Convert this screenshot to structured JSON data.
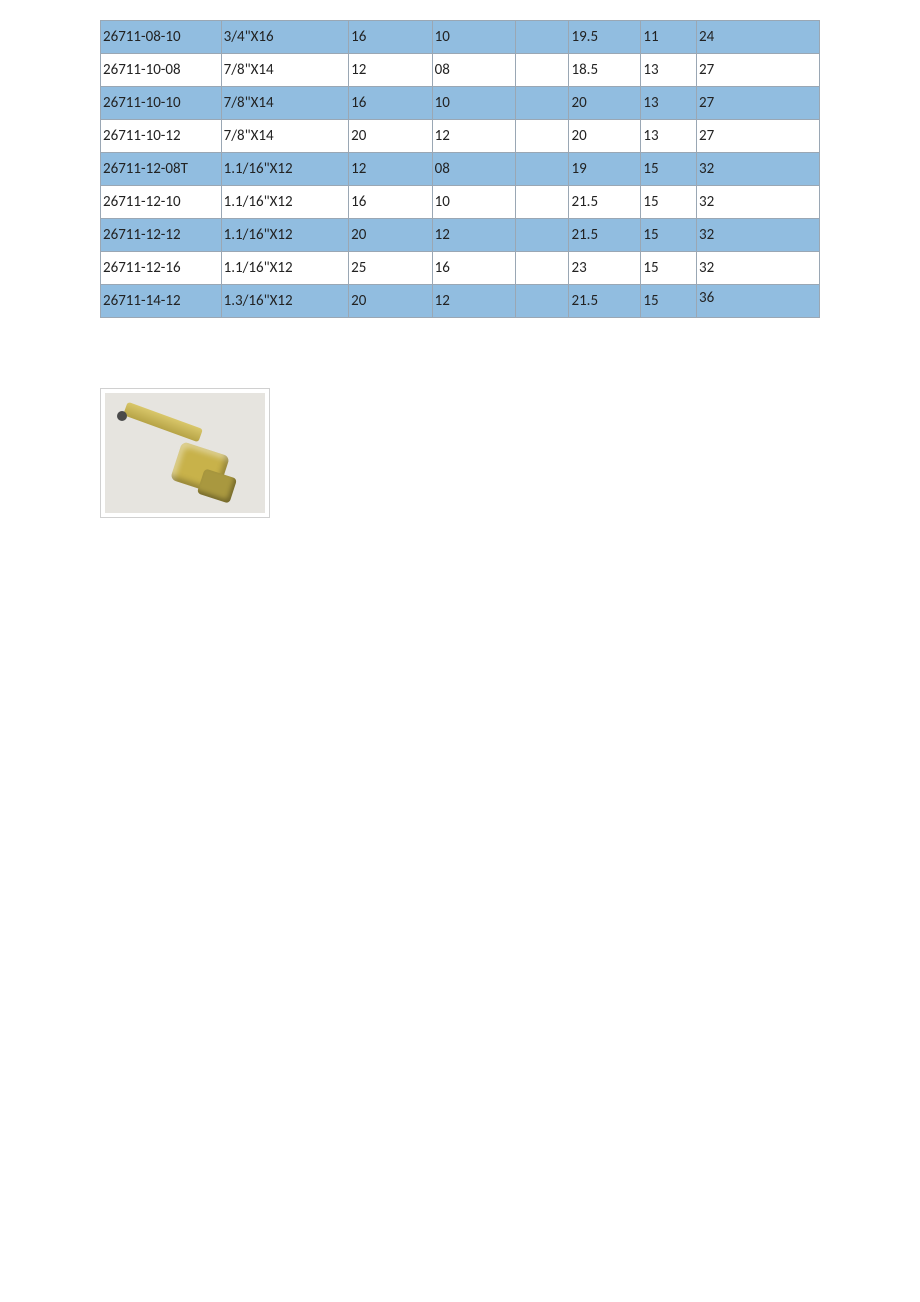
{
  "table": {
    "columns": [
      "c0",
      "c1",
      "c2",
      "c3",
      "c4",
      "c5",
      "c6",
      "c7"
    ],
    "rows": [
      {
        "shade": true,
        "cells": [
          "26711-08-10",
          "3/4\"X16",
          "16",
          "10",
          "",
          "19.5",
          "11",
          "24"
        ]
      },
      {
        "shade": false,
        "cells": [
          "26711-10-08",
          "7/8\"X14",
          "12",
          "08",
          "",
          "18.5",
          "13",
          "27"
        ]
      },
      {
        "shade": true,
        "cells": [
          "26711-10-10",
          "7/8\"X14",
          "16",
          "10",
          "",
          "20",
          "13",
          "27"
        ]
      },
      {
        "shade": false,
        "cells": [
          "26711-10-12",
          "7/8\"X14",
          "20",
          "12",
          "",
          "20",
          "13",
          "27"
        ]
      },
      {
        "shade": true,
        "tall": true,
        "cells": [
          "26711-12-08T",
          "1.1/16\"X12",
          "12",
          "08",
          "",
          "19",
          "15",
          "32"
        ]
      },
      {
        "shade": false,
        "cells": [
          "26711-12-10",
          "1.1/16\"X12",
          "16",
          "10",
          "",
          "21.5",
          "15",
          "32"
        ]
      },
      {
        "shade": true,
        "cells": [
          "26711-12-12",
          "1.1/16\"X12",
          "20",
          "12",
          "",
          "21.5",
          "15",
          "32"
        ]
      },
      {
        "shade": false,
        "cells": [
          "26711-12-16",
          "1.1/16\"X12",
          "25",
          "16",
          "",
          "23",
          "15",
          "32"
        ]
      },
      {
        "shade": true,
        "xtall": true,
        "cells": [
          "26711-14-12",
          "1.3/16\"X12",
          "20",
          "12",
          "",
          "21.5",
          "15",
          "36"
        ]
      }
    ]
  },
  "image": {
    "alt": "hydraulic-fitting-45deg"
  }
}
